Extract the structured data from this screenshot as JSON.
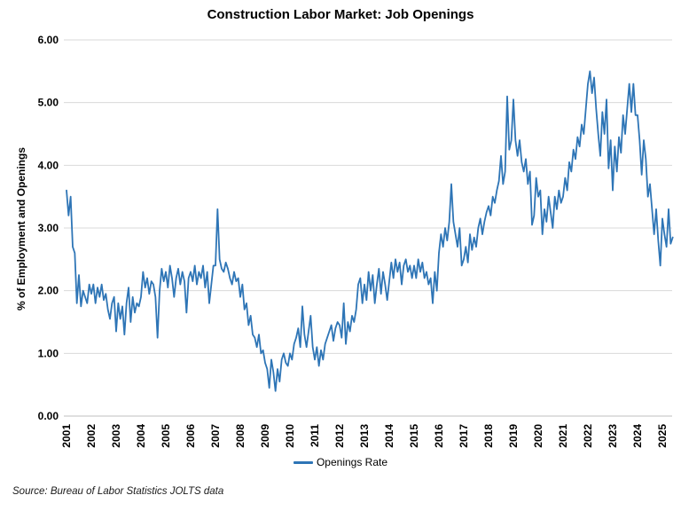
{
  "page": {
    "background": "#FFFFFF"
  },
  "chart_data": {
    "type": "line",
    "title": "Construction Labor Market: Job Openings",
    "ylabel": "% of Employment and Openings",
    "xlabel": "",
    "source_note": "Source: Bureau of Labor Statistics JOLTS data",
    "grid": "horizontal-only",
    "legend_position": "bottom-center",
    "ylim": [
      0,
      6
    ],
    "y_gridline_step": 1,
    "y_tick_labels": [
      "0.00",
      "1.00",
      "2.00",
      "3.00",
      "4.00",
      "5.00",
      "6.00"
    ],
    "x_tick_labels": [
      "2001",
      "2002",
      "2003",
      "2004",
      "2005",
      "2006",
      "2007",
      "2008",
      "2009",
      "2010",
      "2011",
      "2012",
      "2013",
      "2014",
      "2015",
      "2016",
      "2017",
      "2018",
      "2019",
      "2020",
      "2021",
      "2022",
      "2023",
      "2024",
      "2025"
    ],
    "x_unit": "month",
    "x_start": "2001-01",
    "colors": {
      "line": "#2E75B6",
      "gridline": "#D9D9D9",
      "axis_line": "#BFBFBF",
      "text": "#000000"
    },
    "legend": {
      "entries": [
        {
          "label": "Openings Rate",
          "color": "#2E75B6"
        }
      ]
    },
    "series": [
      {
        "name": "Openings Rate",
        "color": "#2E75B6",
        "values": [
          3.6,
          3.2,
          3.5,
          2.7,
          2.6,
          1.8,
          2.25,
          1.75,
          2.0,
          1.9,
          1.8,
          2.1,
          1.95,
          2.1,
          1.8,
          2.05,
          1.9,
          2.1,
          1.85,
          1.95,
          1.7,
          1.55,
          1.8,
          1.9,
          1.35,
          1.8,
          1.55,
          1.75,
          1.3,
          1.8,
          2.05,
          1.5,
          1.9,
          1.65,
          1.8,
          1.75,
          1.9,
          2.3,
          2.05,
          2.2,
          1.95,
          2.15,
          2.1,
          1.9,
          1.25,
          2.0,
          2.35,
          2.15,
          2.3,
          2.05,
          2.4,
          2.2,
          1.9,
          2.2,
          2.35,
          2.1,
          2.3,
          2.15,
          1.65,
          2.2,
          2.3,
          2.15,
          2.4,
          2.1,
          2.3,
          2.2,
          2.4,
          2.05,
          2.3,
          1.8,
          2.1,
          2.4,
          2.4,
          3.3,
          2.5,
          2.35,
          2.3,
          2.45,
          2.35,
          2.2,
          2.1,
          2.3,
          2.15,
          2.2,
          1.9,
          2.1,
          1.7,
          1.8,
          1.45,
          1.6,
          1.3,
          1.25,
          1.1,
          1.3,
          1.0,
          1.05,
          0.85,
          0.75,
          0.45,
          0.9,
          0.7,
          0.4,
          0.75,
          0.55,
          0.9,
          1.0,
          0.85,
          0.8,
          1.0,
          0.9,
          1.15,
          1.25,
          1.4,
          1.1,
          1.75,
          1.3,
          1.1,
          1.35,
          1.6,
          1.1,
          0.9,
          1.1,
          0.8,
          1.05,
          0.9,
          1.15,
          1.25,
          1.35,
          1.45,
          1.2,
          1.4,
          1.5,
          1.45,
          1.25,
          1.8,
          1.15,
          1.5,
          1.35,
          1.6,
          1.5,
          1.7,
          2.1,
          2.2,
          1.8,
          2.1,
          1.85,
          2.3,
          2.0,
          2.25,
          1.8,
          2.1,
          2.35,
          1.95,
          2.3,
          2.1,
          1.85,
          2.15,
          2.45,
          2.2,
          2.5,
          2.3,
          2.45,
          2.1,
          2.4,
          2.5,
          2.3,
          2.4,
          2.2,
          2.4,
          2.2,
          2.5,
          2.3,
          2.45,
          2.2,
          2.3,
          2.1,
          2.2,
          1.8,
          2.3,
          2.0,
          2.6,
          2.9,
          2.7,
          3.0,
          2.8,
          3.1,
          3.7,
          3.1,
          2.9,
          2.7,
          3.0,
          2.4,
          2.5,
          2.7,
          2.45,
          2.9,
          2.65,
          2.85,
          2.7,
          3.0,
          3.15,
          2.9,
          3.1,
          3.25,
          3.35,
          3.2,
          3.5,
          3.4,
          3.6,
          3.75,
          4.15,
          3.7,
          3.9,
          5.1,
          4.25,
          4.4,
          5.05,
          4.4,
          4.15,
          4.4,
          4.05,
          3.9,
          4.1,
          3.7,
          3.9,
          3.05,
          3.2,
          3.8,
          3.5,
          3.6,
          2.9,
          3.3,
          3.1,
          3.5,
          3.25,
          3.0,
          3.5,
          3.3,
          3.6,
          3.4,
          3.5,
          3.8,
          3.6,
          4.05,
          3.9,
          4.25,
          4.1,
          4.45,
          4.3,
          4.65,
          4.5,
          4.9,
          5.3,
          5.5,
          5.15,
          5.4,
          4.9,
          4.5,
          4.15,
          4.85,
          4.5,
          5.05,
          3.95,
          4.4,
          3.6,
          4.3,
          3.9,
          4.45,
          4.2,
          4.8,
          4.5,
          4.9,
          5.3,
          4.85,
          5.3,
          4.8,
          4.8,
          4.4,
          3.85,
          4.4,
          4.1,
          3.5,
          3.7,
          3.3,
          2.9,
          3.3,
          2.8,
          2.4,
          3.15,
          2.9,
          2.7,
          3.3,
          2.75,
          2.85
        ]
      }
    ]
  }
}
